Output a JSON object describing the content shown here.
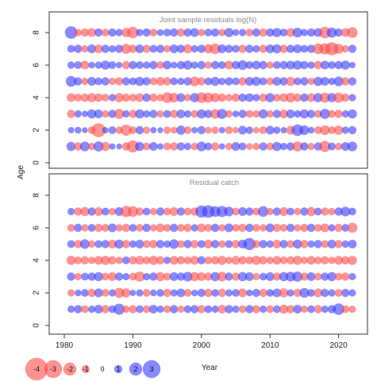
{
  "chart_data": {
    "type": "scatter",
    "subtype": "bubble-residuals",
    "xlabel": "Year",
    "ylabel": "Age",
    "xlim": [
      1979,
      2023
    ],
    "x_ticks": [
      1980,
      1990,
      2000,
      2010,
      2020
    ],
    "colors": {
      "positive": "#3b3bff",
      "negative": "#ff4a4a",
      "opacity": 0.6
    },
    "legend": {
      "position": "bottom-left",
      "entries": [
        {
          "label": "-4",
          "value": -4
        },
        {
          "label": "-3",
          "value": -3
        },
        {
          "label": "-2",
          "value": -2
        },
        {
          "label": "-1",
          "value": -1
        },
        {
          "label": "0",
          "value": 0
        },
        {
          "label": "1",
          "value": 1
        },
        {
          "label": "2",
          "value": 2
        },
        {
          "label": "3",
          "value": 3
        }
      ]
    },
    "years": [
      1981,
      1982,
      1983,
      1984,
      1985,
      1986,
      1987,
      1988,
      1989,
      1990,
      1991,
      1992,
      1993,
      1994,
      1995,
      1996,
      1997,
      1998,
      1999,
      2000,
      2001,
      2002,
      2003,
      2004,
      2005,
      2006,
      2007,
      2008,
      2009,
      2010,
      2011,
      2012,
      2013,
      2014,
      2015,
      2016,
      2017,
      2018,
      2019,
      2020,
      2021,
      2022
    ],
    "panels": [
      {
        "title": "Joint sample residuals log(N)",
        "ylim": [
          0,
          8.8
        ],
        "y_ticks": [
          0,
          2,
          4,
          6,
          8
        ],
        "ages": [
          1,
          2,
          3,
          4,
          5,
          6,
          7,
          8
        ],
        "residuals": [
          [
            1.2,
            -1.0,
            1.3,
            -0.8,
            1.4,
            -1.2,
            0.6,
            0.5,
            -1.0,
            -1.8,
            1.2,
            -0.9,
            1.1,
            0.6,
            -0.9,
            -1.0,
            1.0,
            0.8,
            -0.8,
            1.3,
            0.9,
            -1.0,
            0.6,
            -0.8,
            1.1,
            0.9,
            -0.7,
            -0.8,
            1.0,
            -0.9,
            1.2,
            0.8,
            1.0,
            -1.4,
            1.0,
            -0.8,
            1.0,
            -1.6,
            0.9,
            -0.8,
            1.1,
            1.3
          ],
          [
            0.6,
            0.7,
            0.5,
            -0.9,
            -2.2,
            0.6,
            0.9,
            -0.8,
            -1.6,
            -0.9,
            1.0,
            -0.8,
            0.6,
            0.5,
            -0.8,
            -0.7,
            1.2,
            -0.9,
            0.6,
            1.0,
            -0.7,
            -0.8,
            0.6,
            -0.9,
            -0.6,
            1.1,
            0.8,
            -0.6,
            -0.9,
            1.1,
            0.8,
            0.6,
            -1.1,
            1.7,
            1.3,
            0.7,
            -0.9,
            -1.3,
            -0.9,
            -1.2,
            0.8,
            1.0
          ],
          [
            -1.0,
            0.8,
            0.6,
            1.2,
            1.1,
            -0.8,
            1.0,
            -1.4,
            0.8,
            -1.0,
            1.2,
            0.8,
            1.0,
            -0.8,
            0.9,
            -1.0,
            1.1,
            0.8,
            -0.9,
            1.2,
            1.0,
            -1.3,
            1.4,
            -0.8,
            0.7,
            1.0,
            -0.9,
            -0.8,
            1.2,
            -0.8,
            1.0,
            -1.1,
            1.1,
            0.8,
            1.2,
            1.0,
            -0.9,
            1.4,
            -0.9,
            -1.0,
            0.8,
            1.2
          ],
          [
            -1.1,
            -0.9,
            -1.0,
            -1.2,
            -1.0,
            -0.9,
            0.8,
            -1.2,
            -1.0,
            -0.9,
            -1.1,
            1.0,
            -1.0,
            -0.8,
            -1.5,
            -1.3,
            1.1,
            -0.8,
            1.2,
            -1.5,
            -1.4,
            -1.2,
            -1.0,
            -0.8,
            -1.0,
            1.0,
            1.1,
            0.8,
            -1.0,
            1.2,
            -0.9,
            -1.1,
            -1.3,
            -1.0,
            1.0,
            -1.1,
            1.2,
            -1.4,
            1.2,
            -1.4,
            -1.0,
            0.8
          ],
          [
            1.5,
            1.0,
            -0.8,
            1.1,
            0.9,
            1.0,
            -0.8,
            -1.0,
            1.0,
            0.9,
            1.2,
            1.0,
            -0.9,
            -1.1,
            -1.0,
            0.9,
            0.8,
            1.0,
            -1.3,
            -1.0,
            0.9,
            1.2,
            0.8,
            1.0,
            0.9,
            -1.0,
            1.1,
            1.2,
            0.9,
            -0.9,
            1.1,
            1.0,
            -1.2,
            0.9,
            1.0,
            -0.8,
            1.2,
            1.1,
            0.8,
            1.3,
            -1.0,
            1.0
          ],
          [
            0.8,
            0.9,
            -1.1,
            0.7,
            0.8,
            1.2,
            0.9,
            0.6,
            -1.0,
            1.0,
            0.9,
            0.8,
            1.0,
            -0.9,
            1.1,
            0.7,
            1.0,
            1.2,
            0.8,
            1.0,
            -0.8,
            1.0,
            0.9,
            -1.1,
            1.0,
            1.3,
            0.9,
            1.1,
            1.0,
            -0.8,
            0.9,
            1.0,
            1.1,
            1.2,
            1.0,
            0.8,
            -1.0,
            1.1,
            0.9,
            1.0,
            1.2,
            0.6
          ],
          [
            0.9,
            1.0,
            -0.8,
            1.1,
            -1.1,
            1.0,
            0.8,
            1.0,
            -1.4,
            -1.0,
            1.1,
            -1.0,
            0.9,
            1.0,
            -0.8,
            1.1,
            1.0,
            -1.2,
            0.8,
            1.0,
            -1.2,
            -1.5,
            1.1,
            1.0,
            0.9,
            -1.0,
            1.0,
            0.8,
            -1.0,
            1.1,
            1.2,
            -1.0,
            1.0,
            1.1,
            0.9,
            1.0,
            -1.5,
            -1.6,
            -2.0,
            -1.4,
            -0.8,
            1.0
          ],
          [
            1.9,
            -0.8,
            -1.0,
            -1.1,
            1.0,
            -0.9,
            1.0,
            0.8,
            -1.2,
            -1.7,
            0.8,
            1.0,
            -0.9,
            0.7,
            0.9,
            1.0,
            -1.0,
            1.0,
            1.1,
            -0.8,
            0.9,
            1.0,
            -0.8,
            1.2,
            0.7,
            0.8,
            -0.9,
            1.0,
            -1.0,
            1.0,
            1.2,
            0.9,
            -1.1,
            1.3,
            0.8,
            1.0,
            1.1,
            -1.7,
            1.4,
            1.0,
            -1.1,
            -1.5
          ]
        ]
      },
      {
        "title": "Residual catch",
        "ylim": [
          0,
          8.8
        ],
        "y_ticks": [
          0,
          2,
          4,
          6,
          8
        ],
        "ages": [
          1,
          2,
          3,
          4,
          5,
          6,
          7
        ],
        "residuals": [
          [
            0.8,
            1.0,
            -0.9,
            0.8,
            1.1,
            -1.0,
            0.9,
            1.6,
            -0.8,
            -1.0,
            0.9,
            -0.9,
            1.1,
            0.8,
            -0.9,
            1.0,
            -0.8,
            0.9,
            1.0,
            -1.0,
            0.9,
            0.8,
            -1.1,
            1.0,
            0.8,
            -0.9,
            1.0,
            -1.0,
            0.8,
            -0.9,
            0.9,
            -1.2,
            -1.0,
            1.1,
            -0.8,
            0.9,
            -1.0,
            0.8,
            1.0,
            1.7,
            -0.9,
            -0.8
          ],
          [
            -0.8,
            0.7,
            0.9,
            -1.0,
            1.1,
            -0.9,
            0.8,
            -1.4,
            -1.2,
            0.6,
            0.8,
            -0.9,
            0.7,
            0.9,
            -1.0,
            0.8,
            1.1,
            -0.9,
            0.7,
            1.0,
            -1.0,
            0.9,
            -1.0,
            0.8,
            0.9,
            -1.1,
            0.7,
            1.0,
            -1.0,
            0.9,
            1.1,
            -1.2,
            0.8,
            -1.0,
            1.3,
            0.9,
            -1.1,
            1.0,
            0.8,
            -0.9,
            1.0,
            0.8
          ],
          [
            1.0,
            -0.8,
            0.9,
            1.0,
            1.2,
            -0.9,
            -1.1,
            1.0,
            0.8,
            -0.9,
            -1.4,
            0.8,
            1.0,
            -1.2,
            -0.9,
            1.1,
            1.0,
            1.3,
            -1.2,
            -1.1,
            -1.0,
            1.2,
            -1.3,
            1.0,
            -1.0,
            1.2,
            1.1,
            -0.8,
            0.9,
            1.1,
            -1.0,
            1.2,
            1.3,
            1.4,
            -1.0,
            1.1,
            -0.9,
            1.0,
            1.2,
            -0.9,
            -1.0,
            0.8
          ],
          [
            -1.2,
            -0.9,
            -1.0,
            -0.8,
            -1.1,
            -1.2,
            -1.0,
            -0.8,
            0.9,
            -1.0,
            -1.1,
            -0.9,
            -1.2,
            -1.0,
            0.8,
            -1.1,
            -1.0,
            -0.9,
            -1.1,
            1.0,
            -0.9,
            -1.0,
            -1.2,
            -0.8,
            -1.1,
            -1.0,
            -0.9,
            -1.2,
            -1.0,
            -0.8,
            -1.1,
            -0.9,
            -1.0,
            -1.2,
            -0.8,
            -1.1,
            -0.9,
            -1.0,
            -0.8,
            -1.1,
            -1.0,
            -1.2
          ],
          [
            0.9,
            -1.0,
            1.3,
            -0.8,
            0.9,
            1.0,
            -1.1,
            1.2,
            -1.0,
            0.8,
            1.1,
            -0.9,
            -1.0,
            1.0,
            0.8,
            1.3,
            -0.9,
            1.0,
            -1.0,
            0.9,
            -1.1,
            1.0,
            -0.8,
            0.9,
            -1.0,
            1.1,
            1.8,
            -0.9,
            1.0,
            0.8,
            -1.1,
            1.0,
            -0.9,
            1.2,
            -1.0,
            0.8,
            1.0,
            -0.9,
            1.1,
            -1.0,
            0.8,
            1.1
          ],
          [
            -0.9,
            1.0,
            -0.8,
            0.9,
            -1.0,
            -0.9,
            1.1,
            -0.8,
            -1.0,
            0.9,
            -0.9,
            1.0,
            -0.8,
            -1.1,
            -0.9,
            1.0,
            -0.9,
            -1.0,
            0.8,
            -1.1,
            -0.9,
            1.0,
            -0.8,
            1.1,
            -0.9,
            -1.0,
            1.0,
            -0.9,
            -0.8,
            1.1,
            -1.0,
            -0.9,
            1.0,
            -0.8,
            -1.0,
            1.0,
            -0.9,
            -1.1,
            0.8,
            -1.0,
            0.9,
            -1.4
          ],
          [
            0.8,
            -1.0,
            -1.2,
            1.0,
            -1.1,
            0.9,
            -0.8,
            1.1,
            -1.6,
            -1.5,
            -1.0,
            0.9,
            -0.8,
            1.0,
            -0.9,
            -1.1,
            1.0,
            -0.9,
            -1.0,
            1.8,
            1.9,
            1.5,
            1.6,
            1.3,
            -0.9,
            1.1,
            1.0,
            -0.9,
            1.5,
            -0.8,
            1.0,
            -1.1,
            0.9,
            -0.8,
            1.0,
            -1.2,
            0.9,
            -1.0,
            -0.8,
            1.0,
            1.3,
            0.9
          ]
        ]
      }
    ]
  }
}
